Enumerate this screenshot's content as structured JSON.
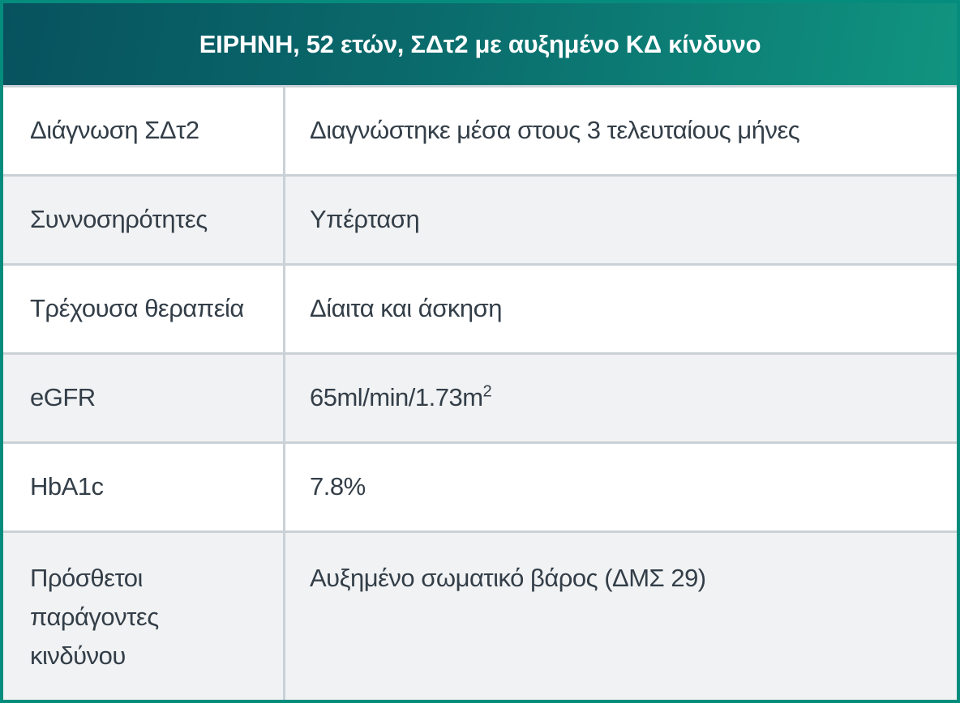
{
  "header": {
    "title": "ΕΙΡΗΝΗ, 52 ετών, ΣΔτ2 με αυξημένο ΚΔ κίνδυνο"
  },
  "table": {
    "rows": [
      {
        "label": "Διάγνωση ΣΔτ2",
        "value": "Διαγνώστηκε μέσα στους 3 τελευταίους μήνες"
      },
      {
        "label": "Συννοσηρότητες",
        "value": "Υπέρταση"
      },
      {
        "label": "Τρέχουσα θεραπεία",
        "value": "Δίαιτα και άσκηση"
      },
      {
        "label": "eGFR",
        "value": "65ml/min/1.73m",
        "value_superscript": "2"
      },
      {
        "label": "HbA1c",
        "value": "7.8%"
      },
      {
        "label": "Πρόσθετοι παράγοντες κινδύνου",
        "value": "Αυξημένο σωματικό βάρος (ΔΜΣ 29)"
      }
    ]
  },
  "colors": {
    "border": "#068c7d",
    "header_gradient_start": "#07525e",
    "header_gradient_end": "#109480",
    "header_text": "#ffffff",
    "row_alt_background": "#f1f2f3",
    "separator": "#cad1d7",
    "body_text": "#333e48"
  }
}
